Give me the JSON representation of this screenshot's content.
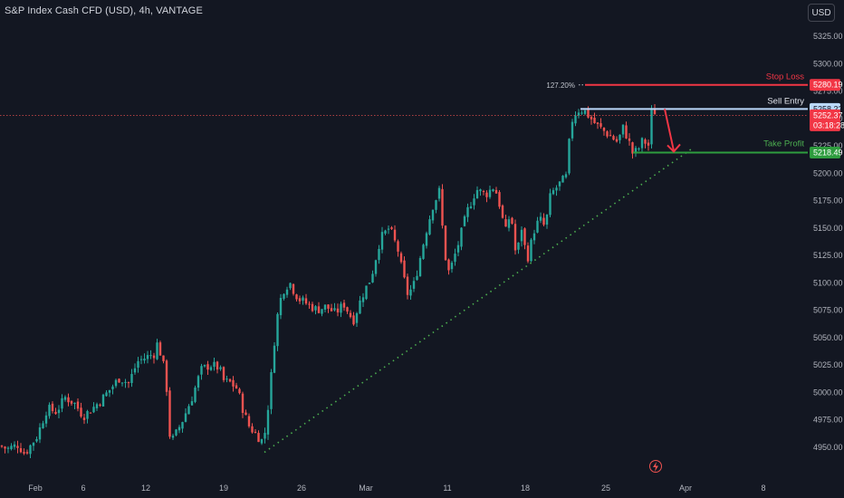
{
  "header": {
    "symbol_title": "S&P Index Cash CFD (USD), 4h, VANTAGE"
  },
  "currency_button": {
    "label": "USD"
  },
  "colors": {
    "bg": "#131722",
    "up": "#26a69a",
    "down": "#ef5350",
    "stop": "#f23645",
    "entry": "#bbd9fb",
    "profit": "#2e9c3e"
  },
  "icons": {
    "alert": "flash-icon"
  },
  "chart_data": {
    "type": "candlestick",
    "title": "S&P Index Cash CFD (USD), 4h, VANTAGE",
    "ylim": [
      4935,
      5350
    ],
    "y_ticks": [
      "5325.00",
      "5300.00",
      "5275.00",
      "5250.00",
      "5225.00",
      "5200.00",
      "5175.00",
      "5150.00",
      "5125.00",
      "5100.00",
      "5075.00",
      "5050.00",
      "5025.00",
      "5000.00",
      "4975.00",
      "4950.00"
    ],
    "x_ticks": [
      "Feb",
      "6",
      "12",
      "19",
      "26",
      "Mar",
      "11",
      "18",
      "25",
      "Apr",
      "8"
    ],
    "fib_label": "127.20%",
    "trade": {
      "stop_loss": {
        "label": "Stop Loss",
        "price": "5280.19"
      },
      "sell_entry": {
        "label": "Sell Entry",
        "price": "5258.22"
      },
      "take_profit": {
        "label": "Take Profit",
        "price": "5218.49"
      }
    },
    "current_price": {
      "price": "5252.37",
      "countdown": "03:18:28"
    },
    "trendline": {
      "from_price": 4945,
      "to_price": 5222
    },
    "waypoints": [
      [
        0,
        4951
      ],
      [
        8,
        4948
      ],
      [
        14,
        4950
      ],
      [
        20,
        4952
      ],
      [
        27,
        4944
      ],
      [
        31,
        4948
      ],
      [
        41,
        4960
      ],
      [
        52,
        4985
      ],
      [
        62,
        4982
      ],
      [
        72,
        4995
      ],
      [
        82,
        4990
      ],
      [
        92,
        4978
      ],
      [
        102,
        4985
      ],
      [
        112,
        4993
      ],
      [
        122,
        5003
      ],
      [
        132,
        5013
      ],
      [
        142,
        5008
      ],
      [
        152,
        5028
      ],
      [
        162,
        5032
      ],
      [
        170,
        5035
      ],
      [
        174,
        5045
      ],
      [
        180,
        5027
      ],
      [
        184,
        5003
      ],
      [
        188,
        4955
      ],
      [
        192,
        4958
      ],
      [
        202,
        4975
      ],
      [
        212,
        4995
      ],
      [
        222,
        5020
      ],
      [
        232,
        5025
      ],
      [
        242,
        5022
      ],
      [
        248,
        5008
      ],
      [
        252,
        5010
      ],
      [
        262,
        5003
      ],
      [
        268,
        4985
      ],
      [
        274,
        4970
      ],
      [
        282,
        4962
      ],
      [
        290,
        4955
      ],
      [
        292,
        4960
      ],
      [
        298,
        5000
      ],
      [
        302,
        5040
      ],
      [
        308,
        5080
      ],
      [
        314,
        5095
      ],
      [
        320,
        5100
      ],
      [
        326,
        5090
      ],
      [
        330,
        5085
      ],
      [
        340,
        5080
      ],
      [
        350,
        5075
      ],
      [
        360,
        5078
      ],
      [
        370,
        5072
      ],
      [
        380,
        5080
      ],
      [
        390,
        5065
      ],
      [
        400,
        5088
      ],
      [
        410,
        5105
      ],
      [
        420,
        5140
      ],
      [
        430,
        5150
      ],
      [
        440,
        5128
      ],
      [
        444,
        5110
      ],
      [
        450,
        5090
      ],
      [
        456,
        5095
      ],
      [
        462,
        5115
      ],
      [
        470,
        5145
      ],
      [
        478,
        5170
      ],
      [
        486,
        5185
      ],
      [
        490,
        5130
      ],
      [
        496,
        5108
      ],
      [
        506,
        5135
      ],
      [
        516,
        5165
      ],
      [
        526,
        5185
      ],
      [
        536,
        5180
      ],
      [
        546,
        5188
      ],
      [
        552,
        5170
      ],
      [
        558,
        5145
      ],
      [
        564,
        5165
      ],
      [
        570,
        5122
      ],
      [
        576,
        5150
      ],
      [
        582,
        5120
      ],
      [
        590,
        5148
      ],
      [
        596,
        5158
      ],
      [
        602,
        5150
      ],
      [
        608,
        5180
      ],
      [
        618,
        5190
      ],
      [
        626,
        5197
      ],
      [
        630,
        5245
      ],
      [
        636,
        5255
      ],
      [
        640,
        5258
      ],
      [
        646,
        5256
      ],
      [
        652,
        5250
      ],
      [
        658,
        5244
      ],
      [
        664,
        5240
      ],
      [
        670,
        5236
      ],
      [
        676,
        5232
      ],
      [
        682,
        5228
      ],
      [
        688,
        5241
      ],
      [
        694,
        5230
      ],
      [
        698,
        5218
      ],
      [
        704,
        5220
      ],
      [
        710,
        5230
      ],
      [
        716,
        5225
      ],
      [
        718,
        5254
      ],
      [
        724,
        5256
      ]
    ]
  }
}
